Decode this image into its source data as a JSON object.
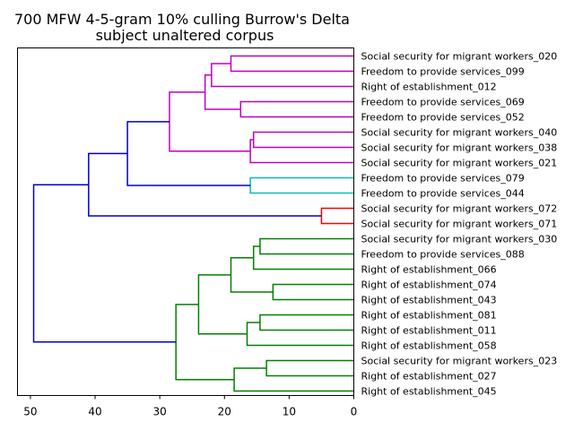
{
  "chart_data": {
    "type": "dendrogram",
    "title": [
      "700 MFW 4-5-gram 10% culling Burrow's Delta",
      "subject unaltered corpus"
    ],
    "xlabel": "",
    "ylabel": "",
    "xlim": [
      52,
      0
    ],
    "xticks": [
      50,
      40,
      30,
      20,
      10,
      0
    ],
    "orientation": "left",
    "grid": false,
    "leaves": [
      "Social security for migrant workers_020",
      "Freedom to provide services_099",
      "Right of establishment_012",
      "Freedom to provide services_069",
      "Freedom to provide services_052",
      "Social security for migrant workers_040",
      "Social security for migrant workers_038",
      "Social security for migrant workers_021",
      "Freedom to provide services_079",
      "Freedom to provide services_044",
      "Social security for migrant workers_072",
      "Social security for migrant workers_071",
      "Social security for migrant workers_030",
      "Freedom to provide services_088",
      "Right of establishment_066",
      "Right of establishment_074",
      "Right of establishment_043",
      "Right of establishment_081",
      "Right of establishment_011",
      "Right of establishment_058",
      "Social security for migrant workers_023",
      "Right of establishment_027",
      "Right of establishment_045"
    ],
    "clusters": [
      {
        "color": "#bf00bf",
        "leaves": [
          0,
          1,
          2,
          3,
          4,
          5,
          6,
          7
        ]
      },
      {
        "color": "#00bfbf",
        "leaves": [
          8,
          9
        ]
      },
      {
        "color": "#ff0000",
        "leaves": [
          10,
          11
        ]
      },
      {
        "color": "#008000",
        "leaves": [
          12,
          13,
          14,
          15,
          16,
          17,
          18,
          19,
          20,
          21,
          22
        ]
      }
    ],
    "link_color_above_threshold": "#0000cc",
    "merges": [
      {
        "id": "m1",
        "a": "L0",
        "b": "L1",
        "height": 19.0,
        "color": "#bf00bf"
      },
      {
        "id": "m2",
        "a": "m1",
        "b": "L2",
        "height": 22.0,
        "color": "#bf00bf"
      },
      {
        "id": "m3",
        "a": "L3",
        "b": "L4",
        "height": 17.5,
        "color": "#bf00bf"
      },
      {
        "id": "m4",
        "a": "m2",
        "b": "m3",
        "height": 23.0,
        "color": "#bf00bf"
      },
      {
        "id": "m5",
        "a": "L5",
        "b": "L6",
        "height": 15.5,
        "color": "#bf00bf"
      },
      {
        "id": "m6",
        "a": "m5",
        "b": "L7",
        "height": 16.0,
        "color": "#bf00bf"
      },
      {
        "id": "m7",
        "a": "m4",
        "b": "m6",
        "height": 28.5,
        "color": "#bf00bf"
      },
      {
        "id": "m8",
        "a": "L8",
        "b": "L9",
        "height": 16.0,
        "color": "#00bfbf"
      },
      {
        "id": "m9",
        "a": "m7",
        "b": "m8",
        "height": 35.0,
        "color": "#0000cc"
      },
      {
        "id": "m10",
        "a": "L10",
        "b": "L11",
        "height": 5.0,
        "color": "#ff0000"
      },
      {
        "id": "m11",
        "a": "m9",
        "b": "m10",
        "height": 41.0,
        "color": "#0000cc"
      },
      {
        "id": "m12",
        "a": "L12",
        "b": "L13",
        "height": 14.5,
        "color": "#008000"
      },
      {
        "id": "m13",
        "a": "m12",
        "b": "L14",
        "height": 15.5,
        "color": "#008000"
      },
      {
        "id": "m14",
        "a": "L15",
        "b": "L16",
        "height": 12.5,
        "color": "#008000"
      },
      {
        "id": "m15",
        "a": "m13",
        "b": "m14",
        "height": 19.0,
        "color": "#008000"
      },
      {
        "id": "m16",
        "a": "L17",
        "b": "L18",
        "height": 14.5,
        "color": "#008000"
      },
      {
        "id": "m17",
        "a": "m16",
        "b": "L19",
        "height": 16.5,
        "color": "#008000"
      },
      {
        "id": "m18",
        "a": "m15",
        "b": "m17",
        "height": 24.0,
        "color": "#008000"
      },
      {
        "id": "m19",
        "a": "L20",
        "b": "L21",
        "height": 13.5,
        "color": "#008000"
      },
      {
        "id": "m20",
        "a": "m19",
        "b": "L22",
        "height": 18.5,
        "color": "#008000"
      },
      {
        "id": "m21",
        "a": "m18",
        "b": "m20",
        "height": 27.5,
        "color": "#008000"
      },
      {
        "id": "m22",
        "a": "m11",
        "b": "m21",
        "height": 49.5,
        "color": "#0000cc"
      }
    ]
  }
}
